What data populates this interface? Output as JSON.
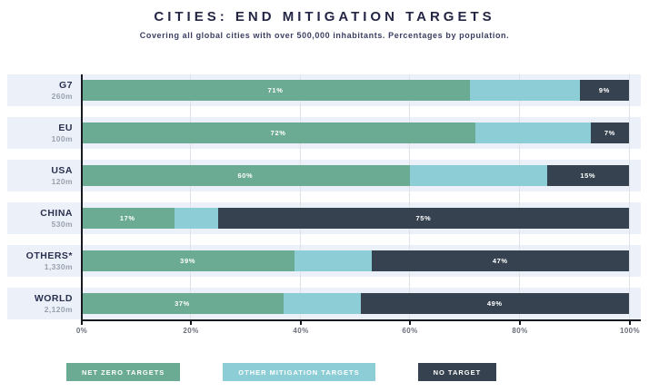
{
  "header": {
    "title": "CITIES: END MITIGATION TARGETS",
    "subtitle": "Covering all global cities with over 500,000 inhabitants. Percentages by population."
  },
  "colors": {
    "net_zero": "#6bab93",
    "other_mitigation": "#8ccdd6",
    "no_target": "#36424f",
    "row_background": "#ecf1f9",
    "title_text": "#242645",
    "axis_line": "#171a20",
    "gridline": "#dde2e9"
  },
  "legend": {
    "position": "bottom",
    "items": [
      {
        "label": "NET ZERO TARGETS",
        "color": "#6bab93"
      },
      {
        "label": "OTHER MITIGATION TARGETS",
        "color": "#8ccdd6"
      },
      {
        "label": "NO TARGET",
        "color": "#36424f"
      }
    ]
  },
  "chart_data": {
    "type": "bar",
    "orientation": "horizontal",
    "stacked": true,
    "title": "CITIES: END MITIGATION TARGETS",
    "subtitle": "Covering all global cities with over 500,000 inhabitants. Percentages by population.",
    "xlabel": "",
    "ylabel": "",
    "xlim": [
      0,
      100
    ],
    "x_ticks": [
      "0%",
      "20%",
      "40%",
      "60%",
      "80%",
      "100%"
    ],
    "gridlines_pct": [
      20,
      40,
      60,
      80,
      100
    ],
    "legend_position": "bottom",
    "series": [
      {
        "name": "NET ZERO TARGETS",
        "color": "#6bab93",
        "values": [
          71,
          72,
          60,
          17,
          39,
          37
        ]
      },
      {
        "name": "OTHER MITIGATION TARGETS",
        "color": "#8ccdd6",
        "values": [
          20,
          21,
          25,
          8,
          14,
          14
        ]
      },
      {
        "name": "NO TARGET",
        "color": "#36424f",
        "values": [
          9,
          7,
          15,
          75,
          47,
          49
        ]
      }
    ],
    "rows": [
      {
        "name": "G7",
        "population": "260m",
        "values": [
          71,
          20,
          9
        ],
        "labels": [
          "71%",
          "",
          "9%"
        ]
      },
      {
        "name": "EU",
        "population": "100m",
        "values": [
          72,
          21,
          7
        ],
        "labels": [
          "72%",
          "",
          "7%"
        ]
      },
      {
        "name": "USA",
        "population": "120m",
        "values": [
          60,
          25,
          15
        ],
        "labels": [
          "60%",
          "",
          "15%"
        ]
      },
      {
        "name": "CHINA",
        "population": "530m",
        "values": [
          17,
          8,
          75
        ],
        "labels": [
          "17%",
          "",
          "75%"
        ]
      },
      {
        "name": "OTHERS*",
        "population": "1,330m",
        "values": [
          39,
          14,
          47
        ],
        "labels": [
          "39%",
          "",
          "47%"
        ]
      },
      {
        "name": "WORLD",
        "population": "2,120m",
        "values": [
          37,
          14,
          49
        ],
        "labels": [
          "37%",
          "",
          "49%"
        ]
      }
    ]
  }
}
